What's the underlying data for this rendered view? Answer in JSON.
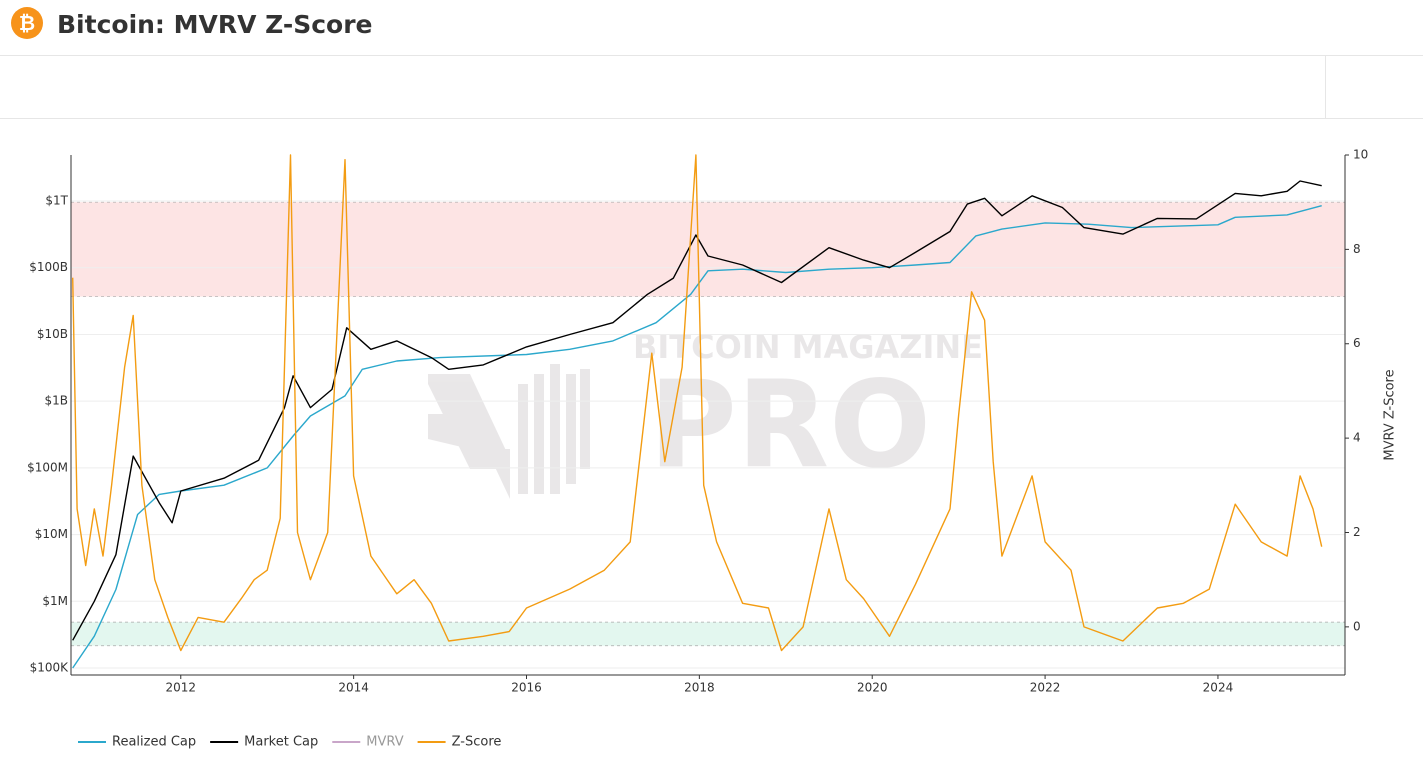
{
  "header": {
    "icon": "₿",
    "title": "Bitcoin: MVRV Z-Score"
  },
  "chart_data": {
    "type": "line",
    "watermark": {
      "line1": "BITCOIN MAGAZINE",
      "line2": "PRO"
    },
    "y2_label": "MVRV Z-Score",
    "xlim": [
      2010.73,
      2025.47
    ],
    "xticks": [
      2012,
      2014,
      2016,
      2018,
      2020,
      2022,
      2024
    ],
    "ylim": [
      78500,
      4900000000000
    ],
    "log_y": true,
    "grid": true,
    "yticks": [
      {
        "value": 100000,
        "label": "$100K"
      },
      {
        "value": 1000000,
        "label": "$1M"
      },
      {
        "value": 10000000,
        "label": "$10M"
      },
      {
        "value": 100000000,
        "label": "$100M"
      },
      {
        "value": 1000000000,
        "label": "$1B"
      },
      {
        "value": 10000000000,
        "label": "$10B"
      },
      {
        "value": 100000000000,
        "label": "$100B"
      },
      {
        "value": 1000000000000,
        "label": "$1T"
      }
    ],
    "y2lim": [
      -1.02,
      10
    ],
    "y2ticks": [
      0,
      2,
      4,
      6,
      8,
      10
    ],
    "bands": [
      {
        "from": 7,
        "to": 9,
        "color": "#fde4e4",
        "axis": "y2"
      },
      {
        "from": -0.4,
        "to": 0.1,
        "color": "#e3f7ef",
        "axis": "y2"
      }
    ],
    "series": [
      {
        "name": "Realized Cap",
        "color": "#2ba8cc",
        "x": [
          2010.75,
          2011.0,
          2011.25,
          2011.5,
          2011.75,
          2012.0,
          2012.5,
          2013.0,
          2013.3,
          2013.5,
          2013.9,
          2014.1,
          2014.5,
          2015.0,
          2016.0,
          2016.5,
          2017.0,
          2017.5,
          2017.9,
          2018.1,
          2018.5,
          2019.0,
          2019.5,
          2020.0,
          2020.5,
          2020.9,
          2021.2,
          2021.5,
          2022.0,
          2022.5,
          2023.0,
          2024.0,
          2024.2,
          2024.8,
          2025.2
        ],
        "values": [
          100000,
          300000,
          1500000,
          20000000,
          40000000,
          45000000,
          55000000,
          100000000,
          300000000,
          600000000,
          1200000000,
          3000000000,
          4000000000,
          4500000000,
          5000000000,
          6000000000,
          8000000000,
          15000000000,
          40000000000,
          90000000000,
          95000000000,
          85000000000,
          95000000000,
          100000000000,
          110000000000,
          120000000000,
          300000000000,
          380000000000,
          470000000000,
          450000000000,
          400000000000,
          440000000000,
          570000000000,
          620000000000,
          850000000000
        ]
      },
      {
        "name": "Market Cap",
        "color": "#000000",
        "x": [
          2010.75,
          2011.0,
          2011.25,
          2011.45,
          2011.75,
          2011.9,
          2012.0,
          2012.5,
          2012.9,
          2013.2,
          2013.3,
          2013.5,
          2013.75,
          2013.92,
          2014.2,
          2014.5,
          2014.9,
          2015.1,
          2015.5,
          2016.0,
          2016.5,
          2017.0,
          2017.4,
          2017.7,
          2017.96,
          2018.1,
          2018.5,
          2018.95,
          2019.5,
          2019.9,
          2020.2,
          2020.5,
          2020.9,
          2021.1,
          2021.3,
          2021.5,
          2021.85,
          2022.2,
          2022.45,
          2022.9,
          2023.3,
          2023.75,
          2024.2,
          2024.5,
          2024.8,
          2024.95,
          2025.2
        ],
        "values": [
          260000,
          1000000,
          5000000,
          150000000,
          30000000,
          15000000,
          45000000,
          70000000,
          130000000,
          800000000,
          2400000000,
          800000000,
          1500000000,
          12600000000,
          6000000000,
          8000000000,
          4500000000,
          3000000000,
          3500000000,
          6500000000,
          10000000000,
          15000000000,
          40000000000,
          70000000000,
          310000000000,
          150000000000,
          110000000000,
          60000000000,
          200000000000,
          130000000000,
          100000000000,
          170000000000,
          350000000000,
          900000000000,
          1100000000000,
          600000000000,
          1200000000000,
          800000000000,
          400000000000,
          320000000000,
          550000000000,
          540000000000,
          1300000000000,
          1200000000000,
          1400000000000,
          2000000000000,
          1700000000000
        ]
      },
      {
        "name": "MVRV",
        "color": "#c9a6c9",
        "visible": false
      },
      {
        "name": "Z-Score",
        "color": "#f39c12",
        "axis": "y2",
        "x": [
          2010.75,
          2010.8,
          2010.9,
          2011.0,
          2011.1,
          2011.2,
          2011.35,
          2011.45,
          2011.55,
          2011.7,
          2011.85,
          2012.0,
          2012.2,
          2012.5,
          2012.7,
          2012.85,
          2013.0,
          2013.15,
          2013.27,
          2013.35,
          2013.5,
          2013.7,
          2013.9,
          2014.0,
          2014.2,
          2014.5,
          2014.7,
          2014.9,
          2015.1,
          2015.5,
          2015.8,
          2016.0,
          2016.5,
          2016.9,
          2017.2,
          2017.45,
          2017.6,
          2017.8,
          2017.96,
          2018.05,
          2018.2,
          2018.5,
          2018.8,
          2018.95,
          2019.2,
          2019.5,
          2019.7,
          2019.9,
          2020.2,
          2020.5,
          2020.9,
          2021.0,
          2021.15,
          2021.3,
          2021.4,
          2021.5,
          2021.85,
          2022.0,
          2022.3,
          2022.45,
          2022.9,
          2023.3,
          2023.6,
          2023.9,
          2024.2,
          2024.5,
          2024.8,
          2024.95,
          2025.1,
          2025.2
        ],
        "values": [
          7.4,
          2.5,
          1.3,
          2.5,
          1.5,
          3.0,
          5.5,
          6.6,
          3.0,
          1.0,
          0.2,
          -0.5,
          0.2,
          0.1,
          0.6,
          1.0,
          1.2,
          2.3,
          10.0,
          2.0,
          1.0,
          2.0,
          9.9,
          3.2,
          1.5,
          0.7,
          1.0,
          0.5,
          -0.3,
          -0.2,
          -0.1,
          0.4,
          0.8,
          1.2,
          1.8,
          5.8,
          3.5,
          5.5,
          10.0,
          3.0,
          1.8,
          0.5,
          0.4,
          -0.5,
          0.0,
          2.5,
          1.0,
          0.6,
          -0.2,
          0.9,
          2.5,
          4.5,
          7.1,
          6.5,
          3.5,
          1.5,
          3.2,
          1.8,
          1.2,
          0.0,
          -0.3,
          0.4,
          0.5,
          0.8,
          2.6,
          1.8,
          1.5,
          3.2,
          2.5,
          1.7
        ]
      }
    ]
  }
}
